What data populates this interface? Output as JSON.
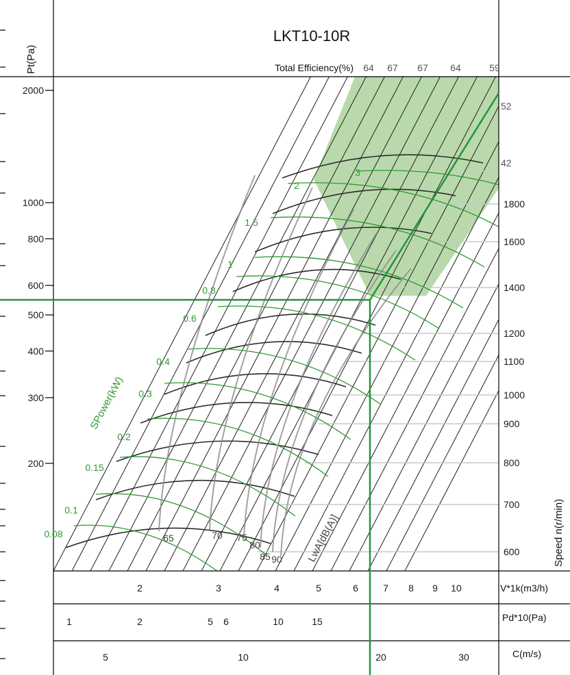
{
  "chart_data": {
    "type": "fan-selection-chart",
    "title": "LKT10-10R",
    "efficiency_header": "Total Efficiency(%)",
    "efficiency_values": [
      "64",
      "67",
      "67",
      "64",
      "59"
    ],
    "y_axis": {
      "label": "Pt(Pa)",
      "scale": "log",
      "ticks": [
        "2000",
        "1000",
        "800",
        "600",
        "500",
        "400",
        "300",
        "200"
      ],
      "range": [
        130,
        2100
      ]
    },
    "speed_axis": {
      "label": "Speed n(r/min)",
      "ticks": [
        "1800",
        "1600",
        "1400",
        "1200",
        "1100",
        "1000",
        "900",
        "800",
        "700",
        "600"
      ]
    },
    "noise_upper_labels": [
      "52",
      "42"
    ],
    "volume_axis": {
      "label": "V*1k(m3/h)",
      "scale": "log",
      "ticks": [
        "2",
        "3",
        "4",
        "5",
        "6",
        "7",
        "8",
        "9",
        "10"
      ]
    },
    "dynamic_pressure_axis": {
      "label": "Pd*10(Pa)",
      "ticks": [
        "1",
        "2",
        "5",
        "6",
        "10",
        "15"
      ]
    },
    "velocity_axis": {
      "label": "C(m/s)",
      "ticks": [
        "5",
        "10",
        "20",
        "30"
      ]
    },
    "power_axis_label": "SPower(kW)",
    "power_values": [
      "3",
      "2",
      "1.5",
      "1",
      "0.8",
      "0.6",
      "0.4",
      "0.3",
      "0.2",
      "0.15",
      "0.1",
      "0.08"
    ],
    "noise_axis_label": "LwA[dB(A)]",
    "noise_values": [
      "65",
      "70",
      "75",
      "80",
      "85",
      "90"
    ],
    "operating_point": {
      "pt_pa": 540,
      "volume_k_m3h": 6.5,
      "velocity_ms": 19
    },
    "colors": {
      "grid": "#1f1f1f",
      "power_curves": "#2f9a2f",
      "noise_curves": "#8a8a8a",
      "selection_line": "#23943a",
      "efficiency_band": "#b9d9ac"
    }
  }
}
